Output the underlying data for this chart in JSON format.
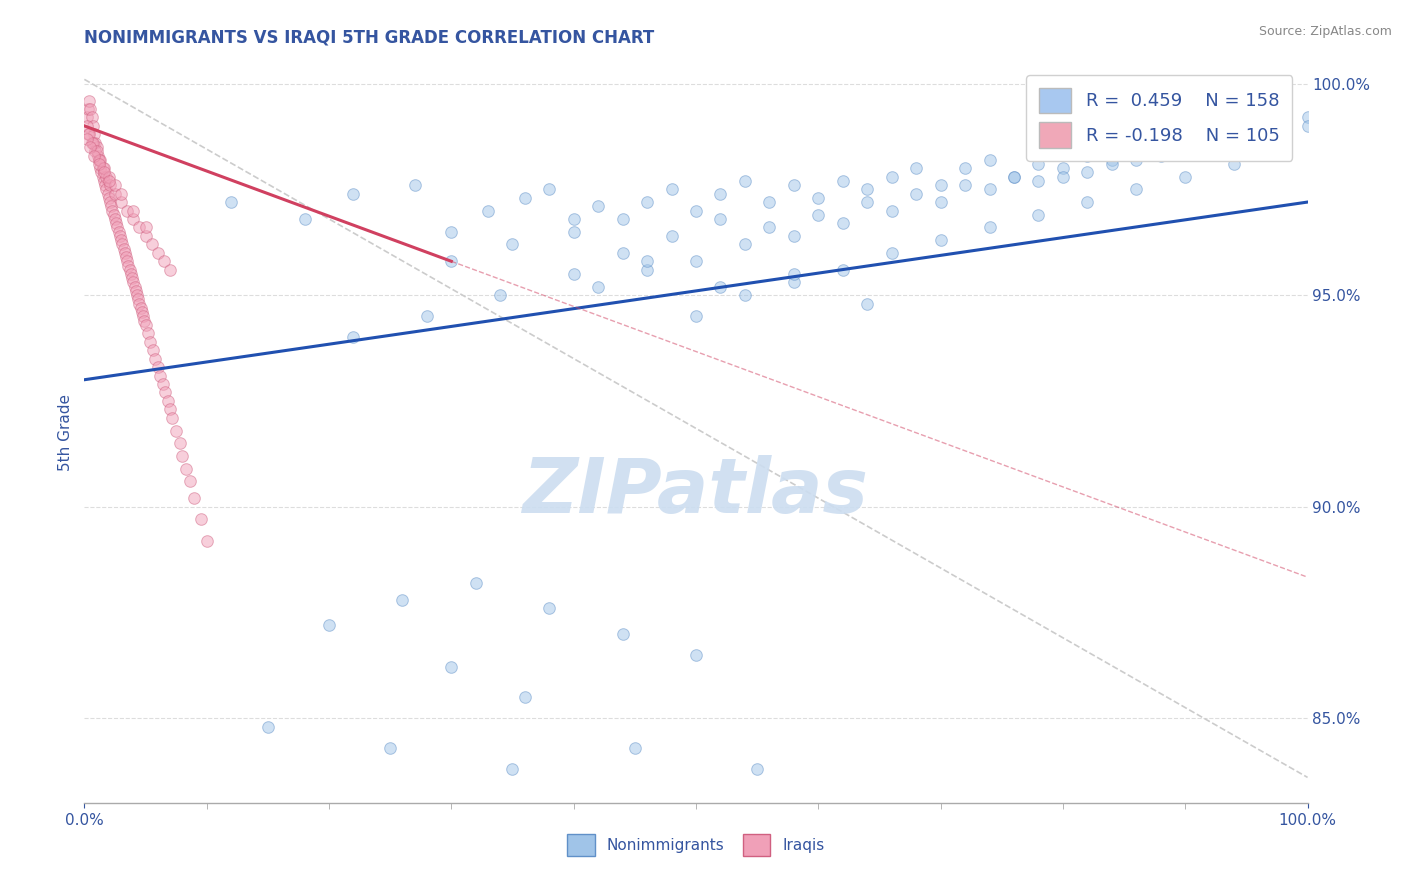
{
  "title": "NONIMMIGRANTS VS IRAQI 5TH GRADE CORRELATION CHART",
  "source": "Source: ZipAtlas.com",
  "ylabel": "5th Grade",
  "right_ytick_vals": [
    0.85,
    0.9,
    0.95,
    1.0
  ],
  "right_ytick_labels": [
    "85.0%",
    "90.0%",
    "95.0%",
    "100.0%"
  ],
  "legend_items": [
    {
      "label": "R =  0.459    N = 158",
      "color": "#a8c8f0"
    },
    {
      "label": "R = -0.198    N = 105",
      "color": "#f0a8b8"
    }
  ],
  "watermark": "ZIPatlas",
  "blue_scatter_x": [
    0.12,
    0.18,
    0.22,
    0.27,
    0.3,
    0.33,
    0.36,
    0.38,
    0.4,
    0.42,
    0.44,
    0.46,
    0.48,
    0.5,
    0.52,
    0.54,
    0.56,
    0.58,
    0.6,
    0.62,
    0.64,
    0.66,
    0.68,
    0.7,
    0.72,
    0.74,
    0.76,
    0.78,
    0.8,
    0.82,
    0.84,
    0.86,
    0.88,
    0.9,
    0.92,
    0.94,
    0.96,
    0.98,
    1.0,
    0.3,
    0.35,
    0.4,
    0.44,
    0.48,
    0.52,
    0.56,
    0.6,
    0.64,
    0.68,
    0.72,
    0.76,
    0.8,
    0.84,
    0.88,
    0.92,
    0.96,
    1.0,
    0.42,
    0.46,
    0.5,
    0.54,
    0.58,
    0.62,
    0.66,
    0.7,
    0.74,
    0.78,
    0.82,
    0.86,
    0.9,
    0.94,
    0.98,
    0.5,
    0.54,
    0.58,
    0.62,
    0.66,
    0.7,
    0.74,
    0.78,
    0.82,
    0.86,
    0.9,
    0.94,
    0.98,
    0.22,
    0.28,
    0.34,
    0.4,
    0.46,
    0.52,
    0.58,
    0.64,
    0.2,
    0.26,
    0.32,
    0.38,
    0.44,
    0.5,
    0.3,
    0.36,
    0.15,
    0.25,
    0.35,
    0.45,
    0.55
  ],
  "blue_scatter_y": [
    0.972,
    0.968,
    0.974,
    0.976,
    0.965,
    0.97,
    0.973,
    0.975,
    0.968,
    0.971,
    0.968,
    0.972,
    0.975,
    0.97,
    0.974,
    0.977,
    0.972,
    0.976,
    0.973,
    0.977,
    0.975,
    0.978,
    0.98,
    0.976,
    0.98,
    0.982,
    0.978,
    0.981,
    0.98,
    0.983,
    0.982,
    0.984,
    0.986,
    0.984,
    0.986,
    0.988,
    0.988,
    0.99,
    0.992,
    0.958,
    0.962,
    0.965,
    0.96,
    0.964,
    0.968,
    0.966,
    0.969,
    0.972,
    0.974,
    0.976,
    0.978,
    0.978,
    0.981,
    0.983,
    0.985,
    0.987,
    0.99,
    0.952,
    0.956,
    0.958,
    0.962,
    0.964,
    0.967,
    0.97,
    0.972,
    0.975,
    0.977,
    0.979,
    0.982,
    0.984,
    0.986,
    0.989,
    0.945,
    0.95,
    0.953,
    0.956,
    0.96,
    0.963,
    0.966,
    0.969,
    0.972,
    0.975,
    0.978,
    0.981,
    0.984,
    0.94,
    0.945,
    0.95,
    0.955,
    0.958,
    0.952,
    0.955,
    0.948,
    0.872,
    0.878,
    0.882,
    0.876,
    0.87,
    0.865,
    0.862,
    0.855,
    0.848,
    0.843,
    0.838,
    0.843,
    0.838
  ],
  "pink_scatter_x": [
    0.002,
    0.003,
    0.004,
    0.005,
    0.006,
    0.007,
    0.008,
    0.009,
    0.01,
    0.011,
    0.012,
    0.013,
    0.014,
    0.015,
    0.016,
    0.017,
    0.018,
    0.019,
    0.02,
    0.021,
    0.022,
    0.023,
    0.024,
    0.025,
    0.026,
    0.027,
    0.028,
    0.029,
    0.03,
    0.031,
    0.032,
    0.033,
    0.034,
    0.035,
    0.036,
    0.037,
    0.038,
    0.039,
    0.04,
    0.041,
    0.042,
    0.043,
    0.044,
    0.045,
    0.046,
    0.047,
    0.048,
    0.049,
    0.05,
    0.052,
    0.054,
    0.056,
    0.058,
    0.06,
    0.062,
    0.064,
    0.066,
    0.068,
    0.07,
    0.072,
    0.075,
    0.078,
    0.08,
    0.083,
    0.086,
    0.09,
    0.095,
    0.1,
    0.003,
    0.006,
    0.009,
    0.012,
    0.015,
    0.018,
    0.021,
    0.025,
    0.03,
    0.035,
    0.04,
    0.045,
    0.05,
    0.055,
    0.06,
    0.065,
    0.07,
    0.002,
    0.004,
    0.007,
    0.01,
    0.013,
    0.016,
    0.02,
    0.025,
    0.03,
    0.04,
    0.05,
    0.002,
    0.005,
    0.008,
    0.012,
    0.016,
    0.02
  ],
  "pink_scatter_y": [
    0.992,
    0.994,
    0.996,
    0.994,
    0.992,
    0.99,
    0.988,
    0.986,
    0.985,
    0.983,
    0.982,
    0.98,
    0.979,
    0.978,
    0.977,
    0.976,
    0.975,
    0.974,
    0.973,
    0.972,
    0.971,
    0.97,
    0.969,
    0.968,
    0.967,
    0.966,
    0.965,
    0.964,
    0.963,
    0.962,
    0.961,
    0.96,
    0.959,
    0.958,
    0.957,
    0.956,
    0.955,
    0.954,
    0.953,
    0.952,
    0.951,
    0.95,
    0.949,
    0.948,
    0.947,
    0.946,
    0.945,
    0.944,
    0.943,
    0.941,
    0.939,
    0.937,
    0.935,
    0.933,
    0.931,
    0.929,
    0.927,
    0.925,
    0.923,
    0.921,
    0.918,
    0.915,
    0.912,
    0.909,
    0.906,
    0.902,
    0.897,
    0.892,
    0.988,
    0.986,
    0.984,
    0.982,
    0.98,
    0.978,
    0.976,
    0.974,
    0.972,
    0.97,
    0.968,
    0.966,
    0.964,
    0.962,
    0.96,
    0.958,
    0.956,
    0.99,
    0.988,
    0.986,
    0.984,
    0.982,
    0.98,
    0.978,
    0.976,
    0.974,
    0.97,
    0.966,
    0.987,
    0.985,
    0.983,
    0.981,
    0.979,
    0.977
  ],
  "blue_line_x": [
    0.0,
    1.0
  ],
  "blue_line_y": [
    0.93,
    0.972
  ],
  "pink_line_x": [
    0.0,
    0.3
  ],
  "pink_line_y": [
    0.99,
    0.958
  ],
  "diag_line_x": [
    0.0,
    1.0
  ],
  "diag_line_y": [
    1.001,
    0.836
  ],
  "xlim": [
    0.0,
    1.0
  ],
  "ylim": [
    0.83,
    1.005
  ],
  "scatter_size": 70,
  "scatter_alpha": 0.5,
  "blue_color": "#a0c4e8",
  "blue_edge": "#6090c8",
  "pink_color": "#f0a0b8",
  "pink_edge": "#d06080",
  "blue_line_color": "#2050b0",
  "pink_line_color": "#d04060",
  "diag_line_color": "#cccccc",
  "title_color": "#3555a0",
  "axis_label_color": "#3555a0",
  "tick_color": "#3555a0",
  "legend_border_color": "#d0d0d0",
  "background_color": "#ffffff",
  "watermark_color": "#ccddf0",
  "grid_color": "#dddddd",
  "source_text": "Source: ZipAtlas.com"
}
